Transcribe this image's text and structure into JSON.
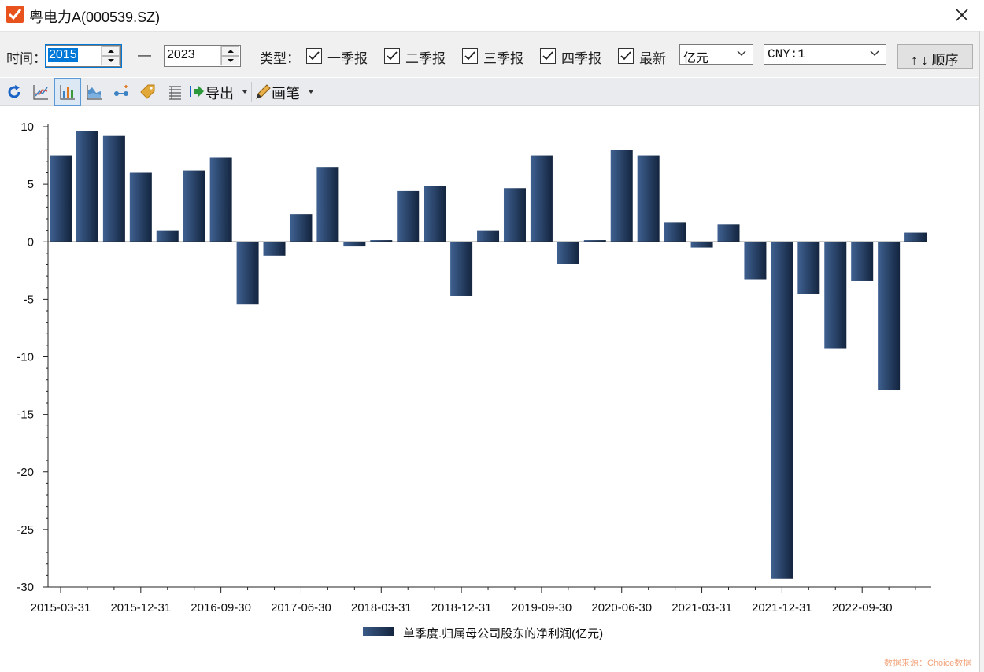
{
  "window": {
    "title": "粤电力A(000539.SZ)"
  },
  "toolbar": {
    "time_label": "时间：",
    "start_year": "2015",
    "dash": "—",
    "end_year": "2023",
    "type_label": "类型：",
    "checkboxes": [
      {
        "label": "一季报",
        "checked": true
      },
      {
        "label": "二季报",
        "checked": true
      },
      {
        "label": "三季报",
        "checked": true
      },
      {
        "label": "四季报",
        "checked": true
      },
      {
        "label": "最新",
        "checked": true
      }
    ],
    "unit_select": "亿元",
    "currency_select": "CNY:1",
    "order_button": "↑ ↓ 顺序"
  },
  "toolbar2": {
    "export_label": "导出",
    "pen_label": "画笔",
    "icons": [
      "refresh-icon",
      "line-chart-icon",
      "bar-chart-icon",
      "area-chart-icon",
      "scatter-icon",
      "tag-icon",
      "table-icon",
      "export-icon",
      "pen-icon"
    ]
  },
  "chart_data": {
    "type": "bar",
    "categories": [
      "2015-03-31",
      "2015-06-30",
      "2015-09-30",
      "2015-12-31",
      "2016-03-31",
      "2016-06-30",
      "2016-09-30",
      "2016-12-31",
      "2017-03-31",
      "2017-06-30",
      "2017-09-30",
      "2017-12-31",
      "2018-03-31",
      "2018-06-30",
      "2018-09-30",
      "2018-12-31",
      "2019-03-31",
      "2019-06-30",
      "2019-09-30",
      "2019-12-31",
      "2020-03-31",
      "2020-06-30",
      "2020-09-30",
      "2020-12-31",
      "2021-03-31",
      "2021-06-30",
      "2021-09-30",
      "2021-12-31",
      "2022-03-31",
      "2022-06-30",
      "2022-09-30",
      "2022-12-31",
      "2023-03-31"
    ],
    "tick_labels": [
      "2015-03-31",
      "2015-12-31",
      "2016-09-30",
      "2017-06-30",
      "2018-03-31",
      "2018-12-31",
      "2019-09-30",
      "2020-06-30",
      "2021-03-31",
      "2021-12-31",
      "2022-09-30"
    ],
    "series": [
      {
        "name": "单季度.归属母公司股东的净利润(亿元)",
        "values": [
          7.5,
          9.6,
          9.2,
          6.0,
          1.0,
          6.2,
          7.3,
          -5.4,
          -1.2,
          2.4,
          6.5,
          -0.4,
          0.15,
          4.4,
          4.85,
          -4.7,
          1.0,
          4.65,
          7.5,
          -1.95,
          0.15,
          8.0,
          7.5,
          1.7,
          -0.5,
          1.5,
          -3.3,
          -29.3,
          -4.55,
          -9.25,
          -3.4,
          -12.9,
          0.8
        ]
      }
    ],
    "yticks": [
      10,
      5,
      0,
      -5,
      -10,
      -15,
      -20,
      -25,
      -30
    ],
    "ylim": [
      -30,
      10
    ],
    "legend_position": "bottom-center",
    "grid": false,
    "bar_color": "#2a4468",
    "source_note": "数据来源：Choice数据"
  }
}
